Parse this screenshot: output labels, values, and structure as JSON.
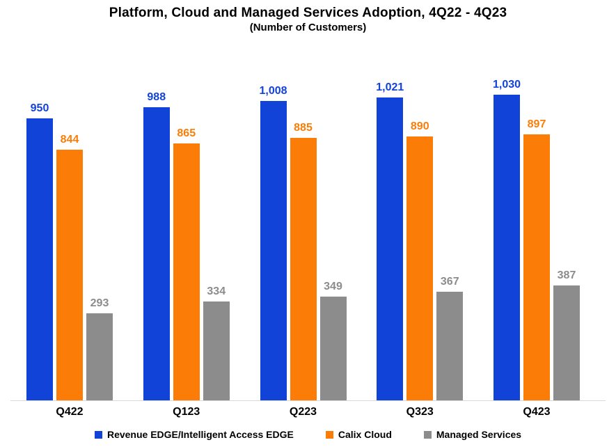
{
  "chart_data": {
    "type": "bar",
    "title": "Platform, Cloud and Managed Services Adoption, 4Q22 - 4Q23",
    "subtitle": "(Number of Customers)",
    "categories": [
      "Q422",
      "Q123",
      "Q223",
      "Q323",
      "Q423"
    ],
    "series": [
      {
        "name": "Revenue EDGE/Intelligent Access EDGE",
        "color": "#1243d8",
        "values": [
          950,
          988,
          1008,
          1021,
          1030
        ],
        "data_labels": [
          "950",
          "988",
          "1,008",
          "1,021",
          "1,030"
        ]
      },
      {
        "name": "Calix Cloud",
        "color": "#fb7d07",
        "values": [
          844,
          865,
          885,
          890,
          897
        ],
        "data_labels": [
          "844",
          "865",
          "885",
          "890",
          "897"
        ]
      },
      {
        "name": "Managed Services",
        "color": "#8c8c8c",
        "values": [
          293,
          334,
          349,
          367,
          387
        ],
        "data_labels": [
          "293",
          "334",
          "349",
          "367",
          "387"
        ]
      }
    ],
    "ylim": [
      0,
      1100
    ],
    "grid": false,
    "y_axis_visible": false,
    "legend_position": "bottom",
    "axis_line_color": "#d9d9d9"
  }
}
